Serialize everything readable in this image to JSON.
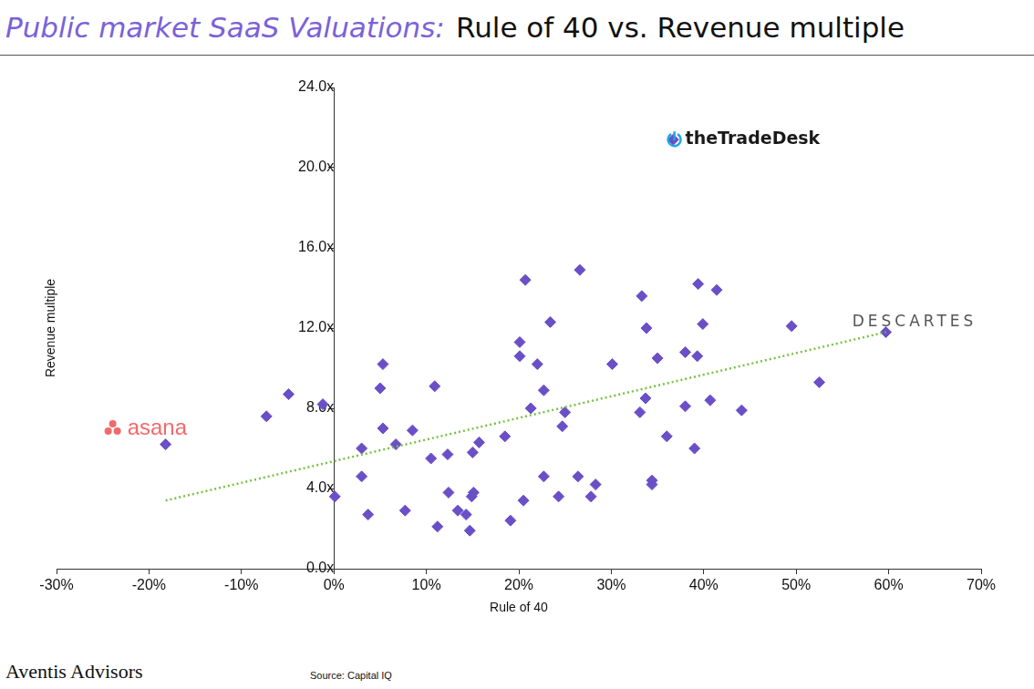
{
  "chart_data": {
    "type": "scatter",
    "title": "Public market SaaS Valuations:",
    "subtitle": "Rule of 40 vs. Revenue multiple",
    "x_label": "Rule of 40",
    "y_label": "Revenue multiple",
    "x": [
      36.7,
      -18.2,
      -7.3,
      -4.9,
      -1.2,
      0.1,
      3.0,
      3.0,
      3.7,
      5.0,
      5.3,
      5.3,
      6.7,
      7.7,
      8.5,
      10.9,
      10.5,
      11.2,
      12.3,
      12.4,
      13.4,
      14.3,
      14.7,
      14.9,
      15.1,
      15.0,
      15.7,
      18.5,
      19.1,
      20.1,
      20.1,
      20.7,
      20.5,
      21.3,
      22.0,
      22.7,
      22.7,
      23.4,
      24.3,
      24.7,
      25.0,
      26.6,
      26.4,
      27.8,
      28.3,
      30.1,
      33.1,
      33.3,
      33.8,
      33.7,
      34.4,
      34.4,
      35.0,
      36.0,
      38.0,
      38.0,
      39.3,
      39.4,
      39.0,
      39.9,
      40.7,
      41.4,
      44.1,
      49.5,
      52.5,
      59.7
    ],
    "values": [
      21.4,
      6.2,
      7.6,
      8.7,
      8.2,
      3.6,
      6.0,
      4.6,
      2.7,
      9.0,
      10.2,
      7.0,
      6.2,
      2.9,
      6.9,
      9.1,
      5.5,
      2.1,
      5.7,
      3.8,
      2.9,
      2.7,
      1.9,
      3.6,
      3.8,
      5.8,
      6.3,
      6.6,
      2.4,
      11.3,
      10.6,
      14.4,
      3.4,
      8.0,
      10.2,
      8.9,
      4.6,
      12.3,
      3.6,
      7.1,
      7.8,
      14.9,
      4.6,
      3.6,
      4.2,
      10.2,
      7.8,
      13.6,
      12.0,
      8.5,
      4.4,
      4.2,
      10.5,
      6.6,
      10.8,
      8.1,
      10.6,
      14.2,
      6.0,
      12.2,
      8.4,
      13.9,
      7.9,
      12.1,
      9.3,
      11.8
    ],
    "color": "#6a4fc7",
    "marker": "diamond",
    "xlim": [
      -30,
      70
    ],
    "xticks": [
      {
        "value": -30,
        "label": "-30%"
      },
      {
        "value": -20,
        "label": "-20%"
      },
      {
        "value": -10,
        "label": "-10%"
      },
      {
        "value": 0,
        "label": "0%"
      },
      {
        "value": 10,
        "label": "10%"
      },
      {
        "value": 20,
        "label": "20%"
      },
      {
        "value": 30,
        "label": "30%"
      },
      {
        "value": 40,
        "label": "40%"
      },
      {
        "value": 50,
        "label": "50%"
      },
      {
        "value": 60,
        "label": "60%"
      },
      {
        "value": 70,
        "label": "70%"
      }
    ],
    "ylim": [
      0,
      24
    ],
    "yticks": [
      {
        "value": 0,
        "label": "0.0x"
      },
      {
        "value": 4,
        "label": "4.0x"
      },
      {
        "value": 8,
        "label": "8.0x"
      },
      {
        "value": 12,
        "label": "12.0x"
      },
      {
        "value": 16,
        "label": "16.0x"
      },
      {
        "value": 20,
        "label": "20.0x"
      },
      {
        "value": 24,
        "label": "24.0x"
      }
    ],
    "grid": false,
    "trendline": {
      "x": [
        -18.2,
        59.7
      ],
      "values": [
        3.4,
        11.8
      ],
      "color": "#7ac143",
      "line_style": "dotted"
    },
    "annotations": [
      {
        "text": "asana",
        "x": -20.5,
        "y": 7.0,
        "color": "#f06a6a"
      },
      {
        "text": "theTradeDesk",
        "x": 44.5,
        "y": 21.4,
        "color": "#1a1a1a"
      },
      {
        "text": "DESCARTES",
        "x": 62.8,
        "y": 12.3,
        "color": "#555555"
      }
    ],
    "brand": "Aventis Advisors",
    "source": "Source: Capital IQ"
  }
}
